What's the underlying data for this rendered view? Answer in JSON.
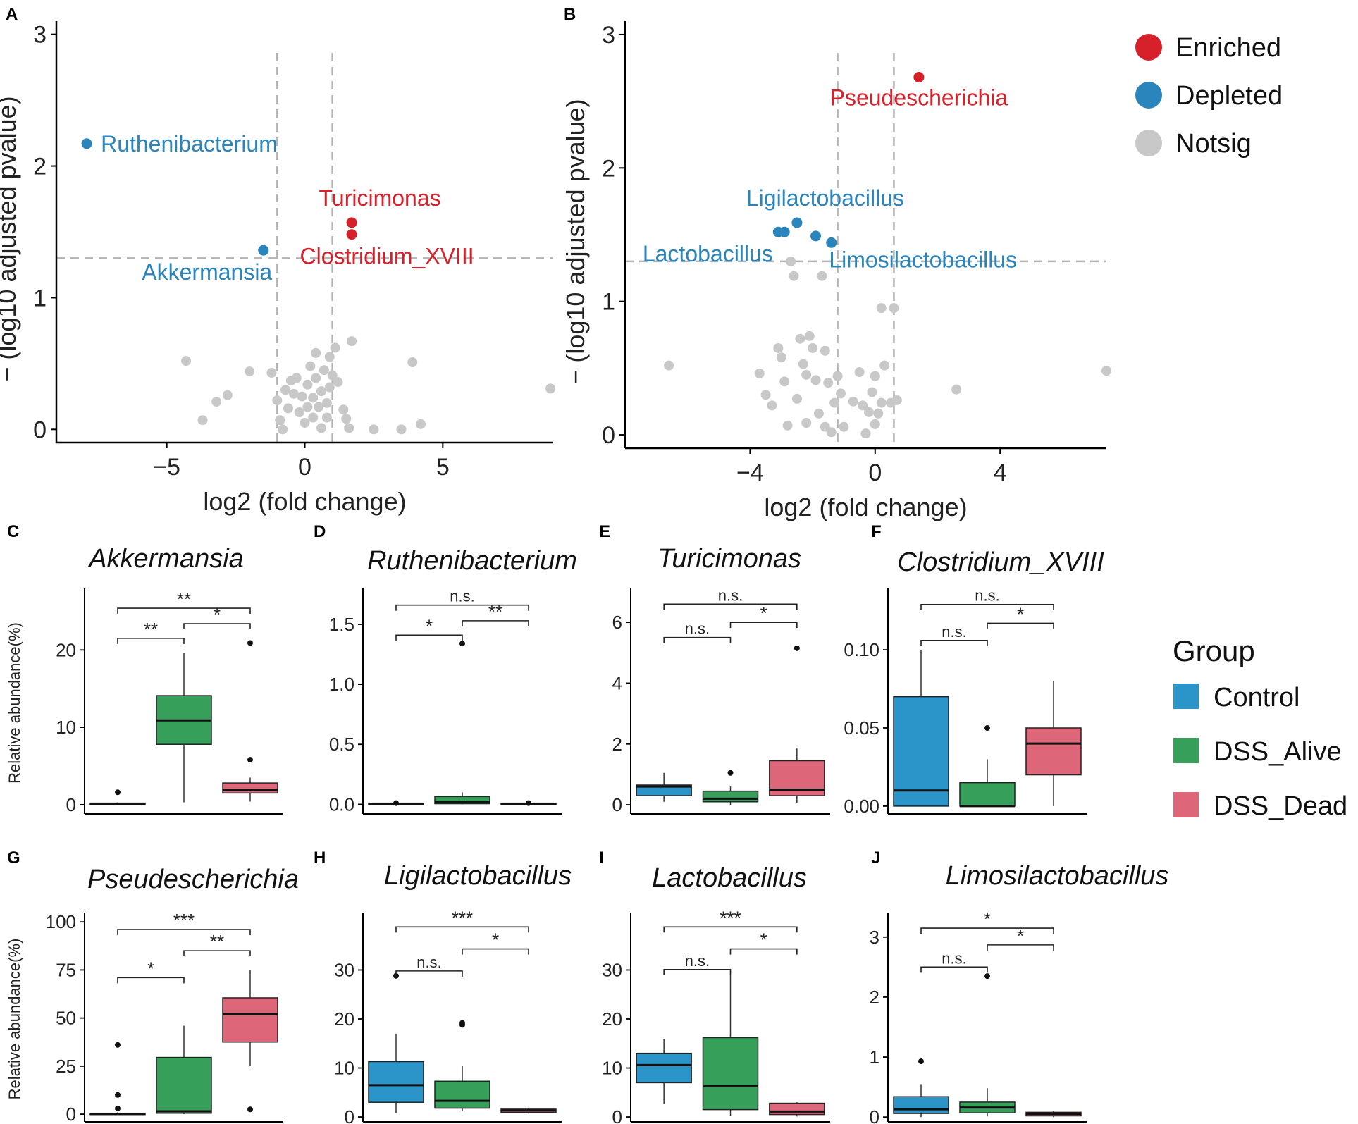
{
  "figure": {
    "colors": {
      "enriched": "#d6202a",
      "depleted": "#2b85bd",
      "notsig": "#c8c8c8",
      "control": "#2b94c8",
      "dss_alive": "#36a05a",
      "dss_dead": "#dd6779",
      "threshold": "#b3b3b3"
    },
    "legends": {
      "volcano": {
        "items": [
          {
            "label": "Enriched",
            "color": "#d6202a"
          },
          {
            "label": "Depleted",
            "color": "#2b85bd"
          },
          {
            "label": "Notsig",
            "color": "#c8c8c8"
          }
        ]
      },
      "group": {
        "title": "Group",
        "items": [
          {
            "label": "Control",
            "color": "#2b94c8"
          },
          {
            "label": "DSS_Alive",
            "color": "#36a05a"
          },
          {
            "label": "DSS_Dead",
            "color": "#dd6779"
          }
        ]
      }
    }
  },
  "chart_data": [
    {
      "panel": "A",
      "type": "scatter",
      "xlabel": "log2 (fold change)",
      "ylabel": "− (log10 adjusted pvalue)",
      "xlim": [
        -9,
        9
      ],
      "ylim": [
        -0.1,
        3.1
      ],
      "xticks": [
        -5,
        0,
        5
      ],
      "yticks": [
        0,
        1,
        2,
        3
      ],
      "thresholds": {
        "x": [
          -1,
          1
        ],
        "y": 1.3
      },
      "highlighted": [
        {
          "name": "Ruthenibacterium",
          "x": -7.9,
          "y": 2.17,
          "status": "Depleted",
          "label_anchor": "start"
        },
        {
          "name": "Akkermansia",
          "x": -1.5,
          "y": 1.36,
          "status": "Depleted",
          "label_anchor": "below"
        },
        {
          "name": "Turicimonas",
          "x": 1.7,
          "y": 1.57,
          "status": "Enriched",
          "label_anchor": "above"
        },
        {
          "name": "Clostridium_XVIII",
          "x": 1.7,
          "y": 1.48,
          "status": "Enriched",
          "label_anchor": "below"
        }
      ],
      "notsig": [
        [
          -4.3,
          0.52
        ],
        [
          -3.7,
          0.07
        ],
        [
          -3.2,
          0.21
        ],
        [
          -2.8,
          0.26
        ],
        [
          -2.0,
          0.44
        ],
        [
          -1.2,
          0.43
        ],
        [
          -1.0,
          0.22
        ],
        [
          -0.9,
          0.07
        ],
        [
          -0.8,
          0.0
        ],
        [
          -0.7,
          0.3
        ],
        [
          -0.6,
          0.16
        ],
        [
          -0.5,
          0.37
        ],
        [
          -0.4,
          0.27
        ],
        [
          -0.3,
          0.39
        ],
        [
          -0.2,
          0.13
        ],
        [
          -0.1,
          0.25
        ],
        [
          0.0,
          0.05
        ],
        [
          0.1,
          0.34
        ],
        [
          0.1,
          0.17
        ],
        [
          0.2,
          0.48
        ],
        [
          0.3,
          0.24
        ],
        [
          0.3,
          0.09
        ],
        [
          0.4,
          0.39
        ],
        [
          0.4,
          0.58
        ],
        [
          0.5,
          0.17
        ],
        [
          0.6,
          0.01
        ],
        [
          0.6,
          0.29
        ],
        [
          0.7,
          0.45
        ],
        [
          0.8,
          0.2
        ],
        [
          0.8,
          0.09
        ],
        [
          0.9,
          0.32
        ],
        [
          0.9,
          0.55
        ],
        [
          1.0,
          0.41
        ],
        [
          1.1,
          0.62
        ],
        [
          1.2,
          0.36
        ],
        [
          1.4,
          0.15
        ],
        [
          1.5,
          0.08
        ],
        [
          1.6,
          0.01
        ],
        [
          1.7,
          0.67
        ],
        [
          2.5,
          0.0
        ],
        [
          3.5,
          0.0
        ],
        [
          3.9,
          0.51
        ],
        [
          4.2,
          0.04
        ],
        [
          8.9,
          0.31
        ]
      ]
    },
    {
      "panel": "B",
      "type": "scatter",
      "xlabel": "log2 (fold change)",
      "ylabel": "− (log10 adjusted pvalue)",
      "xlim": [
        -8,
        7.4
      ],
      "ylim": [
        -0.1,
        3.1
      ],
      "xticks": [
        -4,
        0,
        4
      ],
      "yticks": [
        0,
        1,
        2,
        3
      ],
      "thresholds": {
        "x": [
          -1.2,
          0.6
        ],
        "y": 1.3
      },
      "highlighted": [
        {
          "name": "Pseudescherichia",
          "x": 1.4,
          "y": 2.68,
          "status": "Enriched",
          "label_anchor": "below"
        },
        {
          "name": "Ligilactobacillus",
          "x": -2.5,
          "y": 1.59,
          "status": "Depleted",
          "label_anchor": "above"
        },
        {
          "name": "Lactobacillus",
          "x": -3.1,
          "y": 1.52,
          "status": "Depleted",
          "label_anchor": "below-left"
        },
        {
          "name": "Limosilactobacillus",
          "x": -1.4,
          "y": 1.44,
          "status": "Depleted",
          "label_anchor": "below-right"
        },
        {
          "name": "",
          "x": -2.9,
          "y": 1.52,
          "status": "Depleted",
          "label_anchor": "none"
        },
        {
          "name": "",
          "x": -1.9,
          "y": 1.49,
          "status": "Depleted",
          "label_anchor": "none"
        }
      ],
      "notsig": [
        [
          -6.6,
          0.52
        ],
        [
          -3.7,
          0.46
        ],
        [
          -3.5,
          0.3
        ],
        [
          -3.3,
          0.22
        ],
        [
          -3.1,
          0.65
        ],
        [
          -3.0,
          0.58
        ],
        [
          -2.9,
          0.4
        ],
        [
          -2.8,
          0.07
        ],
        [
          -2.7,
          1.3
        ],
        [
          -2.6,
          1.19
        ],
        [
          -2.5,
          0.27
        ],
        [
          -2.4,
          0.72
        ],
        [
          -2.3,
          0.53
        ],
        [
          -2.2,
          0.45
        ],
        [
          -2.2,
          0.09
        ],
        [
          -2.1,
          0.74
        ],
        [
          -2.0,
          0.65
        ],
        [
          -1.9,
          0.41
        ],
        [
          -1.8,
          0.16
        ],
        [
          -1.7,
          1.19
        ],
        [
          -1.6,
          0.63
        ],
        [
          -1.6,
          0.06
        ],
        [
          -1.5,
          0.39
        ],
        [
          -1.4,
          0.02
        ],
        [
          -1.3,
          0.24
        ],
        [
          -1.2,
          0.44
        ],
        [
          -1.1,
          0.31
        ],
        [
          -1.0,
          0.06
        ],
        [
          -0.7,
          0.25
        ],
        [
          -0.5,
          0.47
        ],
        [
          -0.4,
          0.22
        ],
        [
          -0.3,
          0.01
        ],
        [
          -0.2,
          0.17
        ],
        [
          -0.1,
          0.32
        ],
        [
          0.0,
          0.08
        ],
        [
          0.0,
          0.44
        ],
        [
          0.1,
          0.16
        ],
        [
          0.2,
          0.24
        ],
        [
          0.2,
          0.95
        ],
        [
          0.3,
          0.52
        ],
        [
          0.5,
          0.24
        ],
        [
          0.6,
          0.95
        ],
        [
          0.7,
          0.26
        ],
        [
          2.6,
          0.34
        ],
        [
          7.4,
          0.48
        ]
      ]
    },
    {
      "panel": "C",
      "type": "box",
      "title": "Akkermansia",
      "ylabel": "Relative abundance(%)",
      "ylim": [
        -1.2,
        27.5
      ],
      "yticks": [
        0,
        10,
        20
      ],
      "categories": [
        "Control",
        "DSS_Alive",
        "DSS_Dead"
      ],
      "boxes": [
        {
          "group": "Control",
          "min": 0,
          "q1": 0.05,
          "median": 0.1,
          "q3": 0.2,
          "max": 0.3,
          "outliers": [
            1.6
          ]
        },
        {
          "group": "DSS_Alive",
          "min": 0.3,
          "q1": 7.8,
          "median": 10.9,
          "q3": 14.1,
          "max": 19.6,
          "outliers": []
        },
        {
          "group": "DSS_Dead",
          "min": 0.4,
          "q1": 1.5,
          "median": 1.9,
          "q3": 2.8,
          "max": 3.5,
          "outliers": [
            5.8,
            20.9
          ]
        }
      ],
      "comparisons": [
        {
          "from": 1,
          "to": 2,
          "y": 21.5,
          "label": "**"
        },
        {
          "from": 2,
          "to": 3,
          "y": 23.4,
          "label": "*"
        },
        {
          "from": 1,
          "to": 3,
          "y": 25.4,
          "label": "**"
        }
      ]
    },
    {
      "panel": "D",
      "type": "box",
      "title": "Ruthenibacterium",
      "ylabel": "",
      "ylim": [
        -0.08,
        1.77
      ],
      "yticks": [
        0.0,
        0.5,
        1.0,
        1.5
      ],
      "categories": [
        "Control",
        "DSS_Alive",
        "DSS_Dead"
      ],
      "boxes": [
        {
          "group": "Control",
          "min": 0,
          "q1": 0,
          "median": 0.005,
          "q3": 0.01,
          "max": 0.01,
          "outliers": [
            0.01
          ]
        },
        {
          "group": "DSS_Alive",
          "min": 0,
          "q1": 0.005,
          "median": 0.02,
          "q3": 0.065,
          "max": 0.1,
          "outliers": [
            1.34
          ]
        },
        {
          "group": "DSS_Dead",
          "min": 0,
          "q1": 0,
          "median": 0.005,
          "q3": 0.01,
          "max": 0.01,
          "outliers": [
            0.01
          ]
        }
      ],
      "comparisons": [
        {
          "from": 1,
          "to": 2,
          "y": 1.41,
          "label": "*"
        },
        {
          "from": 2,
          "to": 3,
          "y": 1.53,
          "label": "**"
        },
        {
          "from": 1,
          "to": 3,
          "y": 1.66,
          "label": "n.s."
        }
      ]
    },
    {
      "panel": "E",
      "type": "box",
      "title": "Turicimonas",
      "ylabel": "",
      "ylim": [
        -0.3,
        7.0
      ],
      "yticks": [
        0,
        2,
        4,
        6
      ],
      "categories": [
        "Control",
        "DSS_Alive",
        "DSS_Dead"
      ],
      "boxes": [
        {
          "group": "Control",
          "min": 0.1,
          "q1": 0.3,
          "median": 0.6,
          "q3": 0.65,
          "max": 1.05,
          "outliers": []
        },
        {
          "group": "DSS_Alive",
          "min": 0,
          "q1": 0.1,
          "median": 0.2,
          "q3": 0.45,
          "max": 0.6,
          "outliers": [
            1.05
          ]
        },
        {
          "group": "DSS_Dead",
          "min": 0.05,
          "q1": 0.3,
          "median": 0.5,
          "q3": 1.45,
          "max": 1.85,
          "outliers": [
            5.15
          ]
        }
      ],
      "comparisons": [
        {
          "from": 1,
          "to": 2,
          "y": 5.5,
          "label": "n.s."
        },
        {
          "from": 2,
          "to": 3,
          "y": 6.0,
          "label": "*"
        },
        {
          "from": 1,
          "to": 3,
          "y": 6.6,
          "label": "n.s."
        }
      ]
    },
    {
      "panel": "F",
      "type": "box",
      "title": "Clostridium_XVIII",
      "ylabel": "",
      "ylim": [
        -0.005,
        0.137
      ],
      "yticks": [
        0.0,
        0.05,
        0.1
      ],
      "categories": [
        "Control",
        "DSS_Alive",
        "DSS_Dead"
      ],
      "boxes": [
        {
          "group": "Control",
          "min": 0,
          "q1": 0,
          "median": 0.01,
          "q3": 0.07,
          "max": 0.1,
          "outliers": []
        },
        {
          "group": "DSS_Alive",
          "min": 0,
          "q1": 0,
          "median": 0,
          "q3": 0.015,
          "max": 0.03,
          "outliers": [
            0.05
          ]
        },
        {
          "group": "DSS_Dead",
          "min": 0,
          "q1": 0.02,
          "median": 0.04,
          "q3": 0.05,
          "max": 0.08,
          "outliers": []
        }
      ],
      "comparisons": [
        {
          "from": 1,
          "to": 2,
          "y": 0.106,
          "label": "n.s."
        },
        {
          "from": 2,
          "to": 3,
          "y": 0.117,
          "label": "*"
        },
        {
          "from": 1,
          "to": 3,
          "y": 0.129,
          "label": "n.s."
        }
      ]
    },
    {
      "panel": "G",
      "type": "box",
      "title": "Pseudescherichia",
      "ylabel": "Relative abundance(%)",
      "ylim": [
        -4,
        103
      ],
      "yticks": [
        0,
        25,
        50,
        75,
        100
      ],
      "categories": [
        "Control",
        "DSS_Alive",
        "DSS_Dead"
      ],
      "boxes": [
        {
          "group": "Control",
          "min": 0,
          "q1": 0,
          "median": 0.2,
          "q3": 0.5,
          "max": 1,
          "outliers": [
            3,
            10,
            36
          ]
        },
        {
          "group": "DSS_Alive",
          "min": 0,
          "q1": 0.5,
          "median": 1.5,
          "q3": 29.5,
          "max": 46,
          "outliers": []
        },
        {
          "group": "DSS_Dead",
          "min": 25,
          "q1": 37.5,
          "median": 52,
          "q3": 60.5,
          "max": 75,
          "outliers": [
            2.5
          ]
        }
      ],
      "comparisons": [
        {
          "from": 1,
          "to": 2,
          "y": 71,
          "label": "*"
        },
        {
          "from": 2,
          "to": 3,
          "y": 85,
          "label": "**"
        },
        {
          "from": 1,
          "to": 3,
          "y": 96,
          "label": "***"
        }
      ]
    },
    {
      "panel": "H",
      "type": "box",
      "title": "Ligilactobacillus",
      "ylabel": "",
      "ylim": [
        -1,
        41
      ],
      "yticks": [
        0,
        10,
        20,
        30
      ],
      "categories": [
        "Control",
        "DSS_Alive",
        "DSS_Dead"
      ],
      "boxes": [
        {
          "group": "Control",
          "min": 0.8,
          "q1": 3,
          "median": 6.5,
          "q3": 11.3,
          "max": 17,
          "outliers": [
            28.8
          ]
        },
        {
          "group": "DSS_Alive",
          "min": 1.2,
          "q1": 1.8,
          "median": 3.3,
          "q3": 7.3,
          "max": 10.5,
          "outliers": [
            18.8,
            19.2
          ]
        },
        {
          "group": "DSS_Dead",
          "min": 0.7,
          "q1": 0.9,
          "median": 1.3,
          "q3": 1.6,
          "max": 1.9,
          "outliers": []
        }
      ],
      "comparisons": [
        {
          "from": 1,
          "to": 2,
          "y": 29.8,
          "label": "n.s."
        },
        {
          "from": 2,
          "to": 3,
          "y": 34.3,
          "label": "*"
        },
        {
          "from": 1,
          "to": 3,
          "y": 38.8,
          "label": "***"
        }
      ]
    },
    {
      "panel": "I",
      "type": "box",
      "title": "Lactobacillus",
      "ylabel": "",
      "ylim": [
        -1,
        41
      ],
      "yticks": [
        0,
        10,
        20,
        30
      ],
      "categories": [
        "Control",
        "DSS_Alive",
        "DSS_Dead"
      ],
      "boxes": [
        {
          "group": "Control",
          "min": 2.7,
          "q1": 7,
          "median": 10.6,
          "q3": 13,
          "max": 15.9,
          "outliers": []
        },
        {
          "group": "DSS_Alive",
          "min": 0.3,
          "q1": 1.5,
          "median": 6.3,
          "q3": 16.2,
          "max": 29,
          "outliers": []
        },
        {
          "group": "DSS_Dead",
          "min": 0.1,
          "q1": 0.5,
          "median": 1.1,
          "q3": 2.8,
          "max": 3,
          "outliers": []
        }
      ],
      "comparisons": [
        {
          "from": 1,
          "to": 2,
          "y": 30.1,
          "label": "n.s."
        },
        {
          "from": 2,
          "to": 3,
          "y": 34.3,
          "label": "*"
        },
        {
          "from": 1,
          "to": 3,
          "y": 38.8,
          "label": "***"
        }
      ]
    },
    {
      "panel": "J",
      "type": "box",
      "title": "Limosilactobacillus",
      "ylabel": "",
      "ylim": [
        -0.08,
        3.35
      ],
      "yticks": [
        0,
        1,
        2,
        3
      ],
      "categories": [
        "Control",
        "DSS_Alive",
        "DSS_Dead"
      ],
      "boxes": [
        {
          "group": "Control",
          "min": 0,
          "q1": 0.06,
          "median": 0.13,
          "q3": 0.34,
          "max": 0.55,
          "outliers": [
            0.93
          ]
        },
        {
          "group": "DSS_Alive",
          "min": 0.01,
          "q1": 0.07,
          "median": 0.16,
          "q3": 0.25,
          "max": 0.48,
          "outliers": [
            2.35
          ]
        },
        {
          "group": "DSS_Dead",
          "min": 0,
          "q1": 0.02,
          "median": 0.05,
          "q3": 0.08,
          "max": 0.1,
          "outliers": []
        }
      ],
      "comparisons": [
        {
          "from": 1,
          "to": 2,
          "y": 2.5,
          "label": "n.s."
        },
        {
          "from": 2,
          "to": 3,
          "y": 2.87,
          "label": "*"
        },
        {
          "from": 1,
          "to": 3,
          "y": 3.15,
          "label": "*"
        }
      ]
    }
  ]
}
